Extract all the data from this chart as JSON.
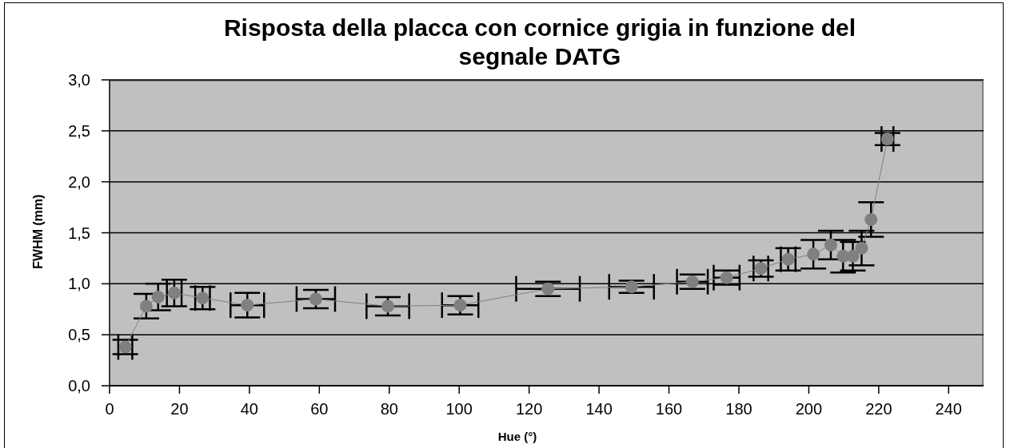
{
  "chart_data": {
    "type": "line",
    "title": "Risposta della placca con cornice grigia in funzione del segnale DATG",
    "xlabel": "Hue (°)",
    "ylabel": "FWHM (mm)",
    "x": [
      4.5,
      10.5,
      13.9,
      18.5,
      26.6,
      39.4,
      59.0,
      79.6,
      100.3,
      125.4,
      149.3,
      166.7,
      176.5,
      186.3,
      194.1,
      201.3,
      206.3,
      209.8,
      212.6,
      215.1,
      217.8,
      222.5
    ],
    "values": [
      0.38,
      0.78,
      0.87,
      0.91,
      0.86,
      0.79,
      0.85,
      0.78,
      0.79,
      0.95,
      0.97,
      1.02,
      1.06,
      1.15,
      1.24,
      1.29,
      1.38,
      1.27,
      1.27,
      1.35,
      1.63,
      2.42
    ],
    "errors": [
      0.07,
      0.12,
      0.13,
      0.13,
      0.11,
      0.12,
      0.09,
      0.09,
      0.09,
      0.07,
      0.06,
      0.07,
      0.07,
      0.08,
      0.11,
      0.14,
      0.14,
      0.16,
      0.14,
      0.17,
      0.17,
      0.06
    ],
    "xerrors": [
      2,
      null,
      null,
      2.1,
      2.1,
      4.8,
      5.5,
      6.1,
      5.2,
      9.1,
      6.4,
      4.4,
      3.7,
      2.1,
      2.1,
      null,
      null,
      null,
      null,
      null,
      null,
      1.7
    ],
    "color": "#808080",
    "marker": "circle",
    "line_style": "solid",
    "grid": "y",
    "xlim": [
      0,
      250
    ],
    "xticks": [
      0,
      20,
      40,
      60,
      80,
      100,
      120,
      140,
      160,
      180,
      200,
      220,
      240
    ],
    "ylim": [
      0,
      3
    ],
    "yticks": [
      {
        "value": 0,
        "label": "0,0"
      },
      {
        "value": 0.5,
        "label": "0,5"
      },
      {
        "value": 1,
        "label": "1,0"
      },
      {
        "value": 1.5,
        "label": "1,5"
      },
      {
        "value": 2,
        "label": "2,0"
      },
      {
        "value": 2.5,
        "label": "2,5"
      },
      {
        "value": 3,
        "label": "3,0"
      }
    ]
  }
}
